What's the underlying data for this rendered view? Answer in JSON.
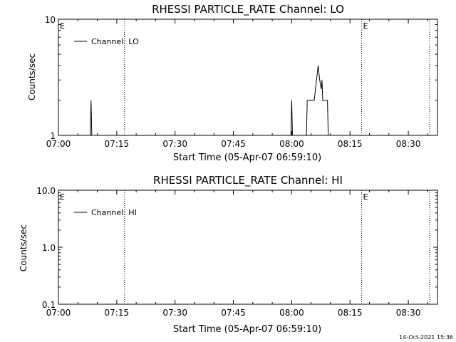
{
  "chart_data": [
    {
      "type": "line",
      "title": "RHESSI PARTICLE_RATE Channel: LO",
      "xlabel": "Start Time (05-Apr-07 06:59:10)",
      "ylabel": "Counts/sec",
      "yscale": "log",
      "ylim": [
        1,
        10
      ],
      "y_ticks": [
        {
          "value": 1,
          "label": "1"
        },
        {
          "value": 10,
          "label": "10"
        }
      ],
      "xlim_minutes": [
        0,
        97.5
      ],
      "x_ticks": [
        "07:00",
        "07:15",
        "07:30",
        "07:45",
        "08:00",
        "08:15",
        "08:30"
      ],
      "x_tick_minutes": [
        0,
        15,
        30,
        45,
        60,
        75,
        90
      ],
      "vertical_dotted_lines_minutes": [
        17,
        78,
        95.5
      ],
      "markers": [
        {
          "minute": 0,
          "label": "E"
        },
        {
          "minute": 78,
          "label": "E"
        }
      ],
      "legend": {
        "placement": "top-left",
        "entries": [
          "Channel: LO"
        ]
      },
      "series": [
        {
          "name": "Channel: LO",
          "points": [
            [
              8.2,
              1
            ],
            [
              8.4,
              2
            ],
            [
              8.6,
              1
            ],
            [
              59.8,
              1
            ],
            [
              60.0,
              2
            ],
            [
              60.2,
              1
            ],
            [
              63.8,
              1
            ],
            [
              64.0,
              2
            ],
            [
              65.8,
              2
            ],
            [
              66.4,
              3
            ],
            [
              66.8,
              4
            ],
            [
              67.2,
              3
            ],
            [
              67.6,
              2.5
            ],
            [
              67.8,
              3
            ],
            [
              68.0,
              2
            ],
            [
              69.2,
              2
            ],
            [
              69.4,
              1
            ]
          ]
        }
      ]
    },
    {
      "type": "line",
      "title": "RHESSI PARTICLE_RATE Channel: HI",
      "xlabel": "Start Time (05-Apr-07 06:59:10)",
      "ylabel": "Counts/sec",
      "yscale": "log",
      "ylim": [
        0.1,
        10
      ],
      "y_ticks": [
        {
          "value": 0.1,
          "label": "0.1"
        },
        {
          "value": 1,
          "label": "1.0"
        },
        {
          "value": 10,
          "label": "10.0"
        }
      ],
      "xlim_minutes": [
        0,
        97.5
      ],
      "x_ticks": [
        "07:00",
        "07:15",
        "07:30",
        "07:45",
        "08:00",
        "08:15",
        "08:30"
      ],
      "x_tick_minutes": [
        0,
        15,
        30,
        45,
        60,
        75,
        90
      ],
      "vertical_dotted_lines_minutes": [
        17,
        78,
        95.5
      ],
      "markers": [
        {
          "minute": 0,
          "label": "E"
        },
        {
          "minute": 78,
          "label": "E"
        }
      ],
      "legend": {
        "placement": "top-left",
        "entries": [
          "Channel: HI"
        ]
      },
      "series": [
        {
          "name": "Channel: HI",
          "points": []
        }
      ]
    }
  ],
  "footer": {
    "timestamp": "14-Oct-2021 15:36"
  }
}
